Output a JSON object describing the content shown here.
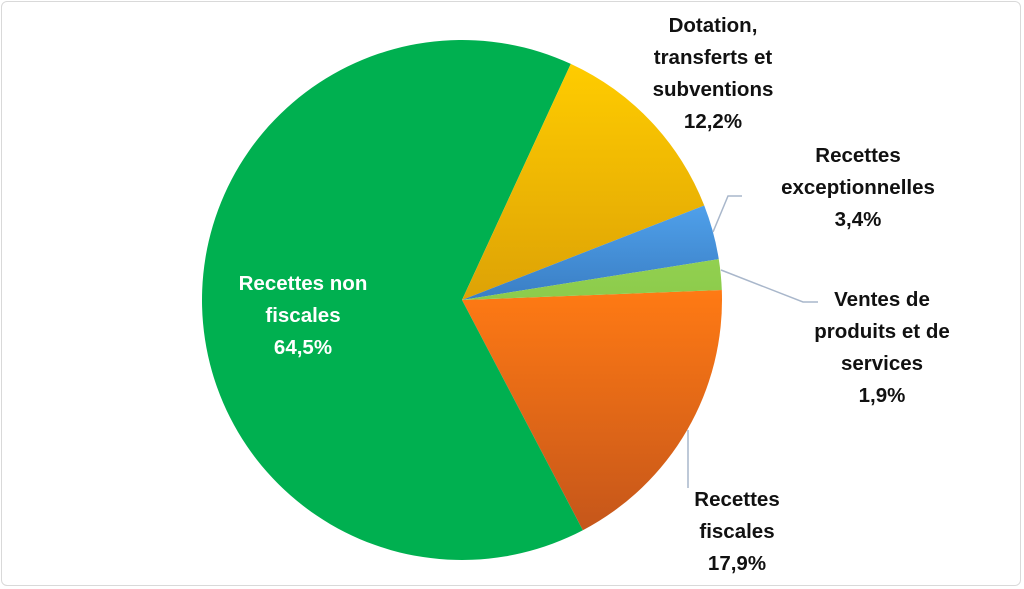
{
  "chart_data": {
    "type": "pie",
    "title": "",
    "start_angle_deg": 87.8,
    "direction": "clockwise",
    "slices": [
      {
        "label": [
          "Recettes",
          "fiscales"
        ],
        "value": 17.9,
        "value_label": "17,9%",
        "color_top": "#FF7A14",
        "color_bottom": "#C5561A"
      },
      {
        "label": [
          "Recettes non",
          "fiscales"
        ],
        "value": 64.5,
        "value_label": "64,5%",
        "color_top": "#00B050",
        "color_bottom": "#00B050"
      },
      {
        "label": [
          "Dotation,",
          "transferts et",
          "subventions"
        ],
        "value": 12.2,
        "value_label": "12,2%",
        "color_top": "#FFCC00",
        "color_bottom": "#DDA206"
      },
      {
        "label": [
          "Recettes",
          "exceptionnelles"
        ],
        "value": 3.4,
        "value_label": "3,4%",
        "color_top": "#4FA0EA",
        "color_bottom": "#3A7EC4"
      },
      {
        "label": [
          "Ventes de",
          "produits et de",
          "services"
        ],
        "value": 1.9,
        "value_label": "1,9%",
        "color_top": "#92D050",
        "color_bottom": "#8CCB4B"
      }
    ],
    "leader_line_color": "#A9B7CB"
  }
}
